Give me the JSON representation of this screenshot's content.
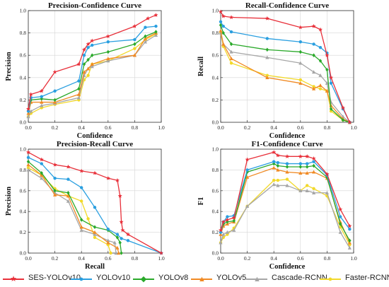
{
  "legend": [
    {
      "name": "SES-YOLOv10",
      "color": "#e8303a",
      "marker": "star"
    },
    {
      "name": "YOLOv10",
      "color": "#2a9fe0",
      "marker": "circle"
    },
    {
      "name": "YOLOv8",
      "color": "#2aa92a",
      "marker": "diamond"
    },
    {
      "name": "YOLOv5",
      "color": "#f08a24",
      "marker": "triangle"
    },
    {
      "name": "Cascade-RCNN",
      "color": "#a6a6a6",
      "marker": "triangle"
    },
    {
      "name": "Faster-RCNN",
      "color": "#f2d92a",
      "marker": "circle"
    }
  ],
  "chart_data": [
    {
      "type": "line",
      "title": "Precision-Confidence Curve",
      "xlabel": "Confidence",
      "ylabel": "Precision",
      "xlim": [
        0,
        1
      ],
      "ylim": [
        0,
        1
      ],
      "ticks": [
        "0.0",
        "0.2",
        "0.4",
        "0.6",
        "0.8",
        "1.0"
      ],
      "grid": true,
      "series": [
        {
          "name": "SES-YOLOv10",
          "x": [
            0,
            0.02,
            0.1,
            0.2,
            0.38,
            0.42,
            0.45,
            0.48,
            0.6,
            0.8,
            0.9,
            0.96
          ],
          "y": [
            0.12,
            0.25,
            0.28,
            0.45,
            0.52,
            0.65,
            0.7,
            0.73,
            0.77,
            0.86,
            0.93,
            0.96
          ]
        },
        {
          "name": "YOLOv10",
          "x": [
            0,
            0.02,
            0.1,
            0.2,
            0.38,
            0.42,
            0.45,
            0.48,
            0.6,
            0.8,
            0.88,
            0.96
          ],
          "y": [
            0.1,
            0.22,
            0.23,
            0.28,
            0.37,
            0.6,
            0.67,
            0.69,
            0.72,
            0.74,
            0.85,
            0.86
          ]
        },
        {
          "name": "YOLOv8",
          "x": [
            0,
            0.02,
            0.1,
            0.2,
            0.38,
            0.42,
            0.45,
            0.48,
            0.6,
            0.8,
            0.88,
            0.96
          ],
          "y": [
            0.1,
            0.2,
            0.21,
            0.2,
            0.3,
            0.52,
            0.56,
            0.6,
            0.63,
            0.7,
            0.77,
            0.81
          ]
        },
        {
          "name": "YOLOv5",
          "x": [
            0,
            0.02,
            0.1,
            0.2,
            0.38,
            0.42,
            0.45,
            0.48,
            0.6,
            0.8,
            0.88,
            0.96
          ],
          "y": [
            0.08,
            0.18,
            0.18,
            0.18,
            0.25,
            0.45,
            0.48,
            0.52,
            0.57,
            0.6,
            0.75,
            0.8
          ]
        },
        {
          "name": "Cascade-RCNN",
          "x": [
            0,
            0.02,
            0.1,
            0.2,
            0.38,
            0.42,
            0.45,
            0.48,
            0.6,
            0.8,
            0.88,
            0.96
          ],
          "y": [
            0.05,
            0.1,
            0.15,
            0.17,
            0.22,
            0.42,
            0.48,
            0.5,
            0.55,
            0.6,
            0.72,
            0.78
          ]
        },
        {
          "name": "Faster-RCNN",
          "x": [
            0,
            0.02,
            0.1,
            0.2,
            0.38,
            0.42,
            0.45,
            0.48,
            0.6,
            0.8,
            0.88,
            0.96
          ],
          "y": [
            0.05,
            0.08,
            0.13,
            0.16,
            0.2,
            0.38,
            0.42,
            0.52,
            0.55,
            0.66,
            0.74,
            0.79
          ]
        }
      ]
    },
    {
      "type": "line",
      "title": "Recall-Confidence Curve",
      "xlabel": "Confidence",
      "ylabel": "Recall",
      "xlim": [
        0,
        1
      ],
      "ylim": [
        0,
        1
      ],
      "ticks": [
        "0.0",
        "0.2",
        "0.4",
        "0.6",
        "0.8",
        "1.0"
      ],
      "grid": true,
      "series": [
        {
          "name": "SES-YOLOv10",
          "x": [
            0,
            0.02,
            0.08,
            0.35,
            0.6,
            0.7,
            0.75,
            0.8,
            0.83,
            0.92,
            0.97
          ],
          "y": [
            0.99,
            0.95,
            0.94,
            0.93,
            0.85,
            0.86,
            0.83,
            0.6,
            0.4,
            0.13,
            0.0
          ]
        },
        {
          "name": "YOLOv10",
          "x": [
            0,
            0.02,
            0.08,
            0.35,
            0.6,
            0.7,
            0.75,
            0.8,
            0.83,
            0.92,
            0.97
          ],
          "y": [
            0.9,
            0.86,
            0.81,
            0.75,
            0.72,
            0.7,
            0.67,
            0.62,
            0.35,
            0.12,
            0.0
          ]
        },
        {
          "name": "YOLOv8",
          "x": [
            0,
            0.02,
            0.08,
            0.35,
            0.6,
            0.7,
            0.75,
            0.8,
            0.83,
            0.92,
            0.97
          ],
          "y": [
            0.87,
            0.8,
            0.7,
            0.65,
            0.63,
            0.6,
            0.55,
            0.47,
            0.12,
            0.02,
            0.0
          ]
        },
        {
          "name": "YOLOv5",
          "x": [
            0,
            0.02,
            0.08,
            0.35,
            0.6,
            0.7,
            0.75,
            0.8,
            0.83,
            0.92,
            0.97
          ],
          "y": [
            0.82,
            0.7,
            0.57,
            0.4,
            0.35,
            0.3,
            0.33,
            0.28,
            0.15,
            0.03,
            0.0
          ]
        },
        {
          "name": "Cascade-RCNN",
          "x": [
            0,
            0.02,
            0.08,
            0.35,
            0.6,
            0.7,
            0.75,
            0.8,
            0.83,
            0.92,
            0.97
          ],
          "y": [
            0.8,
            0.7,
            0.63,
            0.58,
            0.53,
            0.45,
            0.42,
            0.35,
            0.18,
            0.05,
            0.0
          ]
        },
        {
          "name": "Faster-RCNN",
          "x": [
            0,
            0.02,
            0.08,
            0.35,
            0.6,
            0.7,
            0.75,
            0.8,
            0.83,
            0.92,
            0.97
          ],
          "y": [
            0.8,
            0.68,
            0.53,
            0.42,
            0.38,
            0.32,
            0.3,
            0.28,
            0.1,
            0.02,
            0.0
          ]
        }
      ]
    },
    {
      "type": "line",
      "title": "Precision-Recall Curve",
      "xlabel": "Recall",
      "ylabel": "Precision",
      "xlim": [
        0,
        1
      ],
      "ylim": [
        0,
        1
      ],
      "ticks": [
        "0.0",
        "0.2",
        "0.4",
        "0.6",
        "0.8",
        "1.0"
      ],
      "grid": true,
      "series": [
        {
          "name": "SES-YOLOv10",
          "x": [
            0,
            0.1,
            0.2,
            0.3,
            0.4,
            0.5,
            0.6,
            0.67,
            0.69,
            0.7,
            0.71,
            0.75,
            1.0
          ],
          "y": [
            0.97,
            0.9,
            0.85,
            0.83,
            0.79,
            0.77,
            0.72,
            0.7,
            0.55,
            0.3,
            0.22,
            0.18,
            0.0
          ]
        },
        {
          "name": "YOLOv10",
          "x": [
            0,
            0.1,
            0.2,
            0.3,
            0.4,
            0.5,
            0.6,
            0.67,
            0.7,
            0.75,
            1.0
          ],
          "y": [
            0.92,
            0.86,
            0.72,
            0.71,
            0.63,
            0.44,
            0.23,
            0.18,
            0.14,
            0.12,
            0.0
          ]
        },
        {
          "name": "YOLOv8",
          "x": [
            0,
            0.1,
            0.2,
            0.3,
            0.4,
            0.5,
            0.6,
            0.67,
            0.69,
            0.7
          ],
          "y": [
            0.88,
            0.77,
            0.6,
            0.58,
            0.32,
            0.25,
            0.22,
            0.15,
            0.1,
            0.0
          ]
        },
        {
          "name": "YOLOv5",
          "x": [
            0,
            0.1,
            0.2,
            0.3,
            0.4,
            0.5,
            0.6,
            0.67,
            0.68
          ],
          "y": [
            0.85,
            0.75,
            0.56,
            0.55,
            0.25,
            0.2,
            0.1,
            0.05,
            0.0
          ]
        },
        {
          "name": "Cascade-RCNN",
          "x": [
            0,
            0.1,
            0.2,
            0.3,
            0.4,
            0.5,
            0.6,
            0.65,
            0.66
          ],
          "y": [
            0.8,
            0.72,
            0.58,
            0.5,
            0.22,
            0.18,
            0.12,
            0.1,
            0.0
          ]
        },
        {
          "name": "Faster-RCNN",
          "x": [
            0,
            0.1,
            0.2,
            0.3,
            0.4,
            0.45,
            0.5,
            0.6,
            0.62
          ],
          "y": [
            0.82,
            0.75,
            0.62,
            0.55,
            0.5,
            0.33,
            0.15,
            0.08,
            0.0
          ]
        }
      ]
    },
    {
      "type": "line",
      "title": "F1-Confidence Curve",
      "xlabel": "Confidence",
      "ylabel": "F1",
      "xlim": [
        0,
        1
      ],
      "ylim": [
        0,
        1
      ],
      "ticks": [
        "0.0",
        "0.2",
        "0.4",
        "0.6",
        "0.8",
        "1.0"
      ],
      "grid": true,
      "series": [
        {
          "name": "SES-YOLOv10",
          "x": [
            0,
            0.02,
            0.05,
            0.1,
            0.2,
            0.4,
            0.43,
            0.5,
            0.6,
            0.65,
            0.7,
            0.8,
            0.9,
            0.97
          ],
          "y": [
            0.22,
            0.3,
            0.32,
            0.34,
            0.9,
            0.97,
            0.94,
            0.93,
            0.93,
            0.93,
            0.91,
            0.76,
            0.42,
            0.26
          ]
        },
        {
          "name": "YOLOv10",
          "x": [
            0,
            0.02,
            0.05,
            0.1,
            0.2,
            0.4,
            0.43,
            0.5,
            0.6,
            0.65,
            0.7,
            0.8,
            0.9,
            0.97
          ],
          "y": [
            0.2,
            0.3,
            0.35,
            0.36,
            0.8,
            0.88,
            0.87,
            0.86,
            0.86,
            0.86,
            0.88,
            0.75,
            0.35,
            0.23
          ]
        },
        {
          "name": "YOLOv8",
          "x": [
            0,
            0.02,
            0.05,
            0.1,
            0.2,
            0.4,
            0.43,
            0.5,
            0.6,
            0.65,
            0.7,
            0.8,
            0.9,
            0.97
          ],
          "y": [
            0.2,
            0.28,
            0.3,
            0.31,
            0.78,
            0.86,
            0.84,
            0.83,
            0.83,
            0.83,
            0.84,
            0.73,
            0.28,
            0.12
          ]
        },
        {
          "name": "YOLOv5",
          "x": [
            0,
            0.02,
            0.05,
            0.1,
            0.2,
            0.4,
            0.43,
            0.5,
            0.6,
            0.65,
            0.7,
            0.8,
            0.9,
            0.97
          ],
          "y": [
            0.18,
            0.26,
            0.28,
            0.3,
            0.73,
            0.82,
            0.8,
            0.78,
            0.77,
            0.77,
            0.78,
            0.72,
            0.3,
            0.1
          ]
        },
        {
          "name": "Cascade-RCNN",
          "x": [
            0,
            0.02,
            0.05,
            0.1,
            0.2,
            0.4,
            0.43,
            0.5,
            0.6,
            0.65,
            0.7,
            0.8,
            0.9,
            0.97
          ],
          "y": [
            0.1,
            0.18,
            0.2,
            0.22,
            0.45,
            0.66,
            0.65,
            0.65,
            0.6,
            0.6,
            0.58,
            0.58,
            0.2,
            0.05
          ]
        },
        {
          "name": "Faster-RCNN",
          "x": [
            0,
            0.02,
            0.05,
            0.1,
            0.2,
            0.4,
            0.43,
            0.5,
            0.6,
            0.65,
            0.7,
            0.8,
            0.9,
            0.97
          ],
          "y": [
            0.1,
            0.15,
            0.18,
            0.24,
            0.45,
            0.7,
            0.7,
            0.71,
            0.6,
            0.65,
            0.62,
            0.55,
            0.25,
            0.08
          ]
        }
      ]
    }
  ]
}
